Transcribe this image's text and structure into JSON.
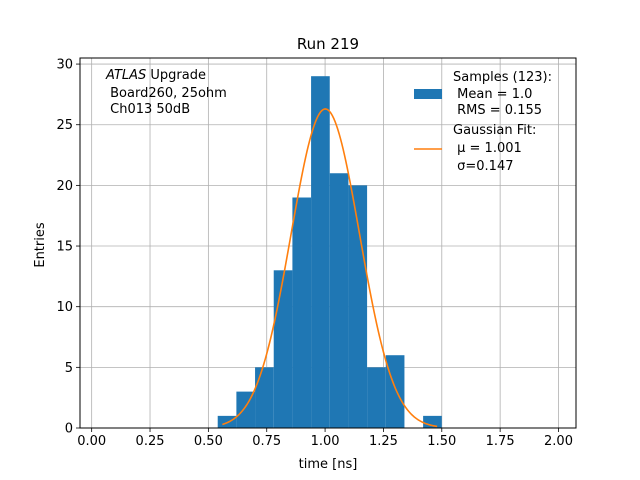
{
  "chart_data": {
    "type": "bar",
    "title": "Run 219",
    "xlabel": "time [ns]",
    "ylabel": "Entries",
    "xlim": [
      -0.05,
      2.075
    ],
    "ylim": [
      0,
      30.5
    ],
    "xticks": [
      0.0,
      0.25,
      0.5,
      0.75,
      1.0,
      1.25,
      1.5,
      1.75,
      2.0
    ],
    "xtick_labels": [
      "0.00",
      "0.25",
      "0.50",
      "0.75",
      "1.00",
      "1.25",
      "1.50",
      "1.75",
      "2.00"
    ],
    "yticks": [
      0,
      5,
      10,
      15,
      20,
      25,
      30
    ],
    "ytick_labels": [
      "0",
      "5",
      "10",
      "15",
      "20",
      "25",
      "30"
    ],
    "grid": true,
    "legend_position": "top-right",
    "annotation": {
      "italic": "ATLAS",
      "line1_rest": " Upgrade",
      "line2": " Board260, 25ohm",
      "line3": " Ch013 50dB"
    },
    "histogram": {
      "name_lines": [
        "Samples (123):",
        " Mean = 1.0",
        " RMS = 0.155"
      ],
      "color": "#1f77b4",
      "bin_edges": [
        0.54,
        0.62,
        0.7,
        0.78,
        0.86,
        0.94,
        1.02,
        1.1,
        1.18,
        1.26,
        1.34,
        1.42,
        1.5
      ],
      "counts": [
        1,
        3,
        5,
        13,
        19,
        29,
        21,
        20,
        5,
        6,
        0,
        1
      ]
    },
    "fit": {
      "name_lines": [
        "Gaussian Fit:",
        " μ = 1.001",
        " σ=0.147"
      ],
      "color": "#ff7f0e",
      "mu": 1.001,
      "sigma": 0.147,
      "amplitude": 26.3,
      "x_range": [
        0.56,
        1.48
      ]
    }
  }
}
